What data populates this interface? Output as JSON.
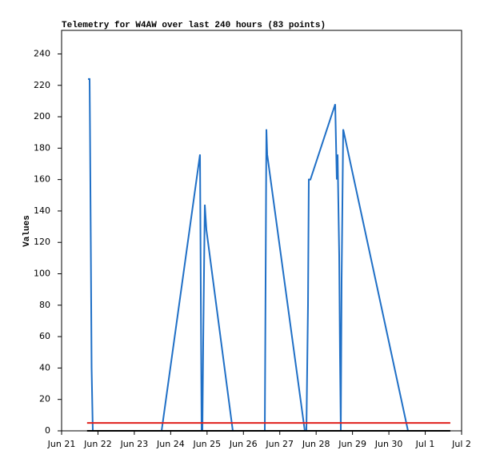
{
  "chart_data": {
    "type": "line",
    "title": "Telemetry for W4AW over last 240 hours (83 points)",
    "y_label": "Values",
    "xlim": [
      0,
      11
    ],
    "xticks": [
      {
        "value": 0,
        "label": "Jun 21"
      },
      {
        "value": 1,
        "label": "Jun 22"
      },
      {
        "value": 2,
        "label": "Jun 23"
      },
      {
        "value": 3,
        "label": "Jun 24"
      },
      {
        "value": 4,
        "label": "Jun 25"
      },
      {
        "value": 5,
        "label": "Jun 26"
      },
      {
        "value": 6,
        "label": "Jun 27"
      },
      {
        "value": 7,
        "label": "Jun 28"
      },
      {
        "value": 8,
        "label": "Jun 29"
      },
      {
        "value": 9,
        "label": "Jun 30"
      },
      {
        "value": 10,
        "label": "Jul 1"
      },
      {
        "value": 11,
        "label": "Jul 2"
      }
    ],
    "ylim": [
      0,
      255
    ],
    "yticks": [
      0,
      20,
      40,
      60,
      80,
      100,
      120,
      140,
      160,
      180,
      200,
      220,
      240
    ],
    "series": [
      {
        "color": "#1f6fc6",
        "x": [
          0.726,
          0.77,
          0.781,
          0.803,
          0.825,
          0.858,
          2.75,
          3.806,
          3.828,
          3.85,
          3.872,
          3.894,
          3.938,
          3.982,
          4.708,
          5.588,
          5.61,
          5.632,
          5.654,
          6.688,
          6.732,
          6.776,
          6.798,
          6.842,
          7.524,
          7.546,
          7.568,
          7.59,
          7.634,
          7.656,
          7.678,
          7.7,
          7.744,
          9.526
        ],
        "values": [
          224,
          224,
          192,
          120,
          40,
          0,
          0,
          176,
          88,
          0,
          0,
          56,
          144,
          128,
          0,
          0,
          96,
          192,
          176,
          0,
          0,
          80,
          160,
          160,
          208,
          184,
          160,
          176,
          112,
          48,
          0,
          96,
          192,
          0
        ]
      },
      {
        "color": "#000000",
        "x": [
          0.7,
          10.69
        ],
        "values": [
          0,
          0
        ]
      },
      {
        "color": "#e0201c",
        "x": [
          0.7,
          10.69
        ],
        "values": [
          5,
          5
        ]
      }
    ]
  }
}
